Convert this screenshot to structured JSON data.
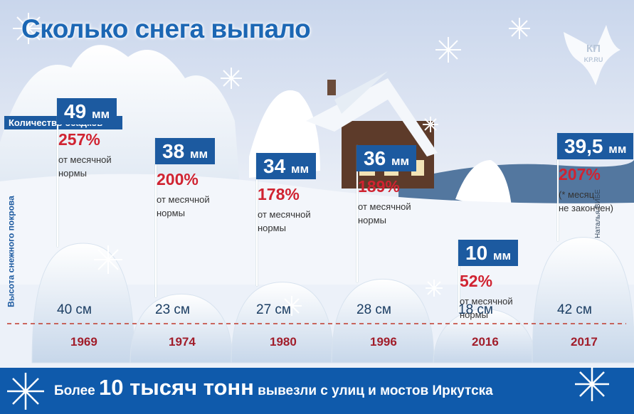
{
  "title": "Сколько снега выпало",
  "labels": {
    "precipitation": "Количество осадков",
    "snow_height": "Высота снежного покрова",
    "credit": "Наталья ВИБЕ"
  },
  "logo": {
    "text_top": "КП",
    "text_bottom": "KP.RU"
  },
  "bottom": {
    "prefix": "Более",
    "highlight": "10 тысяч тонн",
    "suffix": "вывезли с улиц и мостов Иркутска"
  },
  "chart_data": {
    "type": "bar",
    "categories": [
      "1969",
      "1974",
      "1980",
      "1996",
      "2016",
      "2017"
    ],
    "series": [
      {
        "name": "Количество осадков",
        "unit": "мм",
        "values": [
          49,
          38,
          34,
          36,
          10,
          39.5
        ],
        "labels": [
          "49 мм",
          "38 мм",
          "34 мм",
          "36 мм",
          "10 мм",
          "39,5 мм"
        ]
      },
      {
        "name": "% от месячной нормы",
        "values": [
          257,
          200,
          178,
          189,
          52,
          207
        ],
        "labels": [
          "257%",
          "200%",
          "178%",
          "189%",
          "52%",
          "207%"
        ],
        "notes": [
          "от месячной нормы",
          "от месячной нормы",
          "от месячной нормы",
          "от месячной нормы",
          "от месячной нормы",
          "(* месяц не закончен)"
        ]
      },
      {
        "name": "Высота снежного покрова",
        "unit": "см",
        "values": [
          40,
          23,
          27,
          28,
          18,
          42
        ],
        "labels": [
          "40 см",
          "23 см",
          "27 см",
          "28 см",
          "18 см",
          "42 см"
        ]
      }
    ]
  }
}
